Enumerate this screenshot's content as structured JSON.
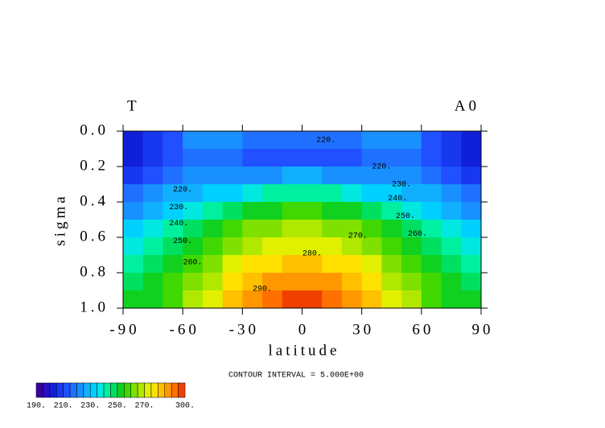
{
  "chart_data": {
    "type": "contour",
    "title": "T",
    "subtitle": "A0",
    "xlabel": "latitude",
    "ylabel": "sigma",
    "xlim": [
      -90,
      90
    ],
    "xticks": [
      -90,
      -60,
      -30,
      0,
      30,
      60,
      90
    ],
    "ylim": [
      1.0,
      0.0
    ],
    "yticks": [
      {
        "value": 0,
        "label": "0.0"
      },
      0.2,
      0.4,
      0.6,
      0.8,
      {
        "value": 1,
        "label": "1.0"
      }
    ],
    "x": [
      -85,
      -75,
      -65,
      -55,
      -45,
      -35,
      -25,
      -15,
      -5,
      5,
      15,
      25,
      35,
      45,
      55,
      65,
      75,
      85
    ],
    "y": [
      0.05,
      0.15,
      0.25,
      0.35,
      0.45,
      0.55,
      0.65,
      0.75,
      0.85,
      0.95
    ],
    "z": [
      [
        200,
        205,
        212,
        220,
        222,
        222,
        218,
        216,
        215,
        215,
        216,
        218,
        222,
        222,
        220,
        212,
        205,
        200
      ],
      [
        202,
        207,
        214,
        218,
        218,
        215,
        213,
        212,
        212,
        212,
        212,
        213,
        215,
        218,
        218,
        214,
        207,
        202
      ],
      [
        208,
        212,
        218,
        222,
        222,
        221,
        222,
        224,
        225,
        225,
        224,
        222,
        221,
        222,
        222,
        218,
        212,
        208
      ],
      [
        216,
        220,
        225,
        229,
        231,
        233,
        237,
        240,
        241,
        241,
        240,
        237,
        233,
        231,
        229,
        225,
        220,
        216
      ],
      [
        224,
        228,
        233,
        238,
        242,
        246,
        250,
        254,
        255,
        255,
        254,
        250,
        246,
        242,
        238,
        233,
        228,
        224
      ],
      [
        232,
        235,
        240,
        246,
        251,
        256,
        260,
        264,
        265,
        265,
        264,
        260,
        256,
        251,
        246,
        240,
        235,
        232
      ],
      [
        238,
        241,
        246,
        252,
        258,
        264,
        268,
        272,
        273,
        273,
        272,
        268,
        264,
        258,
        252,
        246,
        241,
        238
      ],
      [
        243,
        246,
        251,
        258,
        264,
        270,
        275,
        279,
        281,
        281,
        279,
        275,
        270,
        264,
        258,
        251,
        246,
        243
      ],
      [
        247,
        250,
        255,
        262,
        269,
        275,
        281,
        286,
        288,
        288,
        286,
        281,
        275,
        269,
        262,
        255,
        250,
        247
      ],
      [
        251,
        254,
        259,
        266,
        273,
        280,
        287,
        294,
        297,
        297,
        294,
        287,
        280,
        273,
        266,
        259,
        254,
        251
      ]
    ],
    "bounds": [
      190,
      195,
      200,
      205,
      210,
      215,
      220,
      225,
      230,
      235,
      240,
      245,
      250,
      255,
      260,
      265,
      270,
      275,
      280,
      285,
      290,
      295,
      300
    ],
    "colors": [
      "#3b00a0",
      "#2a10c0",
      "#1020d8",
      "#1838f0",
      "#2050ff",
      "#2070ff",
      "#1890ff",
      "#10b0ff",
      "#00d0ff",
      "#00e8e0",
      "#00f0a0",
      "#00e060",
      "#10d020",
      "#40d800",
      "#80e000",
      "#b0e800",
      "#e0f000",
      "#ffe000",
      "#ffc000",
      "#ff9800",
      "#ff7000",
      "#f04000"
    ],
    "colorbar_ticks": [
      {
        "value": 190,
        "label": "190."
      },
      {
        "value": 210,
        "label": "210."
      },
      {
        "value": 230,
        "label": "230."
      },
      {
        "value": 250,
        "label": "250."
      },
      {
        "value": 270,
        "label": "270."
      },
      {
        "value": 300,
        "label": "300."
      }
    ],
    "contour_labels": [
      {
        "text": "220.",
        "x": 12,
        "y": 0.05
      },
      {
        "text": "220.",
        "x": 40,
        "y": 0.2
      },
      {
        "text": "230.",
        "x": 50,
        "y": 0.3
      },
      {
        "text": "240.",
        "x": 48,
        "y": 0.38
      },
      {
        "text": "250.",
        "x": 52,
        "y": 0.48
      },
      {
        "text": "260.",
        "x": 58,
        "y": 0.58
      },
      {
        "text": "270.",
        "x": 28,
        "y": 0.59
      },
      {
        "text": "280.",
        "x": 5,
        "y": 0.69
      },
      {
        "text": "290.",
        "x": -20,
        "y": 0.89
      },
      {
        "text": "220.",
        "x": -60,
        "y": 0.33
      },
      {
        "text": "230.",
        "x": -62,
        "y": 0.43
      },
      {
        "text": "240.",
        "x": -62,
        "y": 0.52
      },
      {
        "text": "250.",
        "x": -60,
        "y": 0.62
      },
      {
        "text": "260.",
        "x": -55,
        "y": 0.74
      }
    ],
    "note": "CONTOUR INTERVAL = 5.000E+00"
  }
}
